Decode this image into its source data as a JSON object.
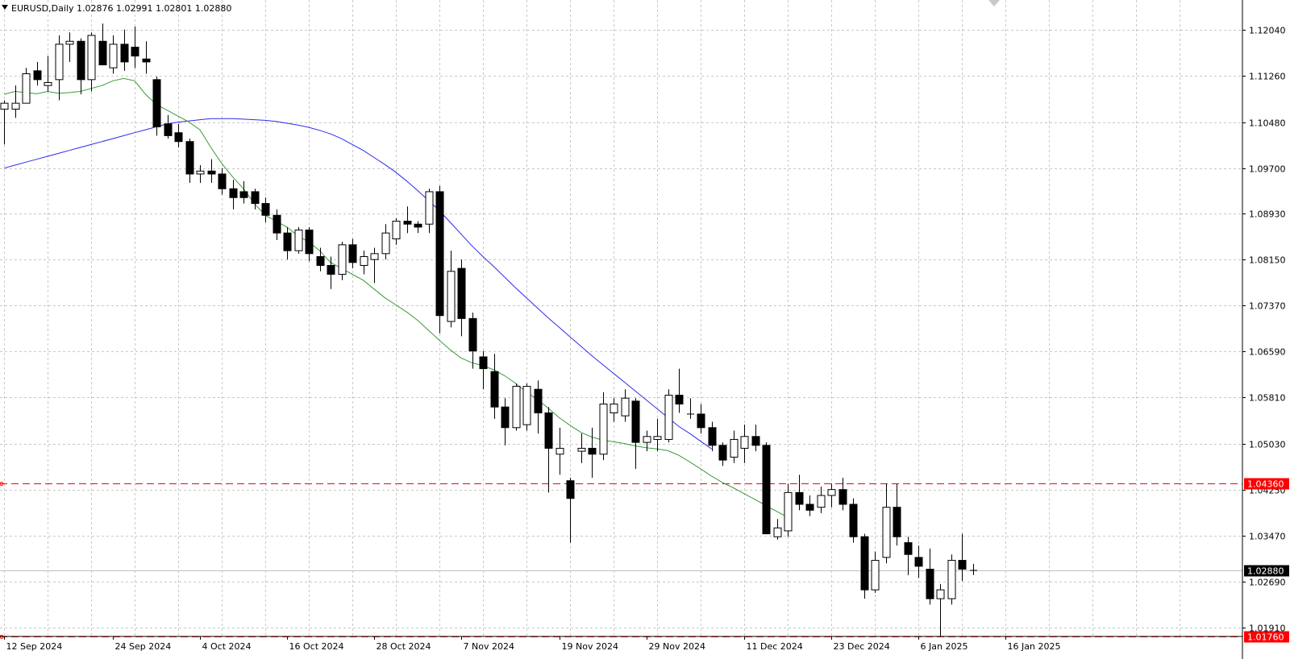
{
  "header": {
    "symbol_line": "EURUSD,Daily 1.02876 1.02991 1.02801 1.02880"
  },
  "colors": {
    "grid": "#c8c8c8",
    "candle_up_fill": "#ffffff",
    "candle_down_fill": "#000000",
    "ma_fast": "#3a9a3a",
    "ma_slow": "#2a2af0",
    "level_line": "#ff0000",
    "bid_line": "#c0c0c0"
  },
  "chart_data": {
    "type": "candlestick",
    "symbol": "EURUSD",
    "timeframe": "Daily",
    "last_ohlc": {
      "open": 1.02876,
      "high": 1.02991,
      "low": 1.02801,
      "close": 1.0288
    },
    "ylim": [
      1.0176,
      1.1255
    ],
    "y_ticks": [
      "1.12040",
      "1.11260",
      "1.10480",
      "1.09700",
      "1.08930",
      "1.08150",
      "1.07370",
      "1.06590",
      "1.05810",
      "1.05030",
      "1.04250",
      "1.03470",
      "1.02690",
      "1.01910"
    ],
    "x_date_labels": [
      {
        "i": 0,
        "label": "12 Sep 2024"
      },
      {
        "i": 10,
        "label": "24 Sep 2024"
      },
      {
        "i": 18,
        "label": "4 Oct 2024"
      },
      {
        "i": 26,
        "label": "16 Oct 2024"
      },
      {
        "i": 34,
        "label": "28 Oct 2024"
      },
      {
        "i": 42,
        "label": "7 Nov 2024"
      },
      {
        "i": 51,
        "label": "19 Nov 2024"
      },
      {
        "i": 59,
        "label": "29 Nov 2024"
      },
      {
        "i": 68,
        "label": "11 Dec 2024"
      },
      {
        "i": 76,
        "label": "23 Dec 2024"
      },
      {
        "i": 84,
        "label": "6 Jan 2025"
      },
      {
        "i": 92,
        "label": "16 Jan 2025"
      }
    ],
    "horizontal_levels": [
      {
        "price": 1.0436,
        "label": "1.04360"
      },
      {
        "price": 1.0176,
        "label": "1.01760"
      }
    ],
    "current_price": {
      "price": 1.0288,
      "label": "1.02880"
    },
    "candles": [
      [
        1.107,
        1.1085,
        1.101,
        1.108
      ],
      [
        1.107,
        1.111,
        1.1055,
        1.108
      ],
      [
        1.108,
        1.114,
        1.108,
        1.113
      ],
      [
        1.1135,
        1.115,
        1.111,
        1.112
      ],
      [
        1.111,
        1.116,
        1.11,
        1.1115
      ],
      [
        1.112,
        1.1195,
        1.1085,
        1.118
      ],
      [
        1.118,
        1.12,
        1.115,
        1.1185
      ],
      [
        1.1185,
        1.119,
        1.1095,
        1.112
      ],
      [
        1.112,
        1.12,
        1.11,
        1.1195
      ],
      [
        1.1185,
        1.1215,
        1.115,
        1.1145
      ],
      [
        1.114,
        1.1195,
        1.113,
        1.118
      ],
      [
        1.118,
        1.1205,
        1.1135,
        1.115
      ],
      [
        1.1175,
        1.121,
        1.114,
        1.116
      ],
      [
        1.1155,
        1.1185,
        1.113,
        1.115
      ],
      [
        1.112,
        1.1125,
        1.1025,
        1.104
      ],
      [
        1.1045,
        1.106,
        1.102,
        1.1025
      ],
      [
        1.103,
        1.1045,
        1.1005,
        1.1015
      ],
      [
        1.1015,
        1.102,
        1.0945,
        1.096
      ],
      [
        1.096,
        1.0975,
        1.0945,
        1.0965
      ],
      [
        1.0965,
        1.0985,
        1.0945,
        1.096
      ],
      [
        1.096,
        1.097,
        1.0925,
        1.0935
      ],
      [
        1.0935,
        1.095,
        1.09,
        1.092
      ],
      [
        1.093,
        1.0948,
        1.091,
        1.092
      ],
      [
        1.093,
        1.0935,
        1.09,
        1.091
      ],
      [
        1.091,
        1.092,
        1.0878,
        1.089
      ],
      [
        1.089,
        1.09,
        1.0848,
        1.086
      ],
      [
        1.086,
        1.087,
        1.0815,
        1.083
      ],
      [
        1.083,
        1.087,
        1.0825,
        1.0865
      ],
      [
        1.0865,
        1.087,
        1.0812,
        1.0825
      ],
      [
        1.082,
        1.0835,
        1.0795,
        1.0805
      ],
      [
        1.0805,
        1.082,
        1.0765,
        1.079
      ],
      [
        1.079,
        1.0845,
        1.078,
        1.084
      ],
      [
        1.084,
        1.085,
        1.08,
        1.081
      ],
      [
        1.0805,
        1.083,
        1.079,
        1.082
      ],
      [
        1.0815,
        1.0835,
        1.0775,
        1.0825
      ],
      [
        1.0825,
        1.0875,
        1.0815,
        1.086
      ],
      [
        1.085,
        1.0885,
        1.084,
        1.088
      ],
      [
        1.088,
        1.0905,
        1.086,
        1.0875
      ],
      [
        1.0875,
        1.088,
        1.086,
        1.087
      ],
      [
        1.0875,
        1.0935,
        1.086,
        1.093
      ],
      [
        1.093,
        1.094,
        1.069,
        1.072
      ],
      [
        1.071,
        1.083,
        1.07,
        1.0795
      ],
      [
        1.08,
        1.0815,
        1.0685,
        1.0715
      ],
      [
        1.0715,
        1.0725,
        1.063,
        1.066
      ],
      [
        1.065,
        1.066,
        1.0595,
        1.063
      ],
      [
        1.0625,
        1.0655,
        1.0545,
        1.0565
      ],
      [
        1.0565,
        1.058,
        1.05,
        1.053
      ],
      [
        1.053,
        1.0605,
        1.0525,
        1.06
      ],
      [
        1.0535,
        1.0605,
        1.0525,
        1.06
      ],
      [
        1.0595,
        1.061,
        1.052,
        1.0555
      ],
      [
        1.0555,
        1.0565,
        1.042,
        1.0495
      ],
      [
        1.0485,
        1.053,
        1.045,
        1.0495
      ],
      [
        1.044,
        1.0445,
        1.0335,
        1.041
      ],
      [
        1.049,
        1.052,
        1.047,
        1.0495
      ],
      [
        1.0495,
        1.053,
        1.0445,
        1.0485
      ],
      [
        1.0485,
        1.059,
        1.0475,
        1.057
      ],
      [
        1.0555,
        1.058,
        1.054,
        1.057
      ],
      [
        1.055,
        1.0595,
        1.054,
        1.058
      ],
      [
        1.0575,
        1.058,
        1.046,
        1.0505
      ],
      [
        1.0505,
        1.0525,
        1.049,
        1.0515
      ],
      [
        1.051,
        1.0545,
        1.049,
        1.0515
      ],
      [
        1.051,
        1.0595,
        1.0505,
        1.0585
      ],
      [
        1.0585,
        1.063,
        1.0555,
        1.057
      ],
      [
        1.0553,
        1.058,
        1.0545,
        1.0553
      ],
      [
        1.0553,
        1.057,
        1.052,
        1.053
      ],
      [
        1.053,
        1.054,
        1.049,
        1.05
      ],
      [
        1.05,
        1.0505,
        1.0465,
        1.0475
      ],
      [
        1.048,
        1.0525,
        1.047,
        1.051
      ],
      [
        1.0495,
        1.0535,
        1.047,
        1.0515
      ],
      [
        1.0515,
        1.0535,
        1.049,
        1.05
      ],
      [
        1.05,
        1.0505,
        1.035,
        1.035
      ],
      [
        1.0345,
        1.0375,
        1.034,
        1.036
      ],
      [
        1.0355,
        1.0435,
        1.0345,
        1.042
      ],
      [
        1.042,
        1.045,
        1.039,
        1.04
      ],
      [
        1.04,
        1.0415,
        1.038,
        1.039
      ],
      [
        1.0395,
        1.043,
        1.0385,
        1.0415
      ],
      [
        1.0415,
        1.0435,
        1.0395,
        1.0425
      ],
      [
        1.0425,
        1.0445,
        1.039,
        1.04
      ],
      [
        1.04,
        1.041,
        1.0335,
        1.0345
      ],
      [
        1.0345,
        1.035,
        1.024,
        1.0255
      ],
      [
        1.0255,
        1.032,
        1.025,
        1.0305
      ],
      [
        1.031,
        1.0435,
        1.03,
        1.0395
      ],
      [
        1.0395,
        1.0435,
        1.033,
        1.0345
      ],
      [
        1.0335,
        1.0345,
        1.028,
        1.0315
      ],
      [
        1.031,
        1.033,
        1.0275,
        1.0295
      ],
      [
        1.029,
        1.0325,
        1.023,
        1.024
      ],
      [
        1.024,
        1.0265,
        1.0176,
        1.0255
      ],
      [
        1.024,
        1.0315,
        1.023,
        1.0305
      ],
      [
        1.0305,
        1.035,
        1.027,
        1.029
      ],
      [
        1.02876,
        1.02991,
        1.02801,
        1.0288
      ]
    ],
    "ma_fast": [
      1.1095,
      1.11,
      1.1098,
      1.1096,
      1.11,
      1.1097,
      1.1098,
      1.11,
      1.1105,
      1.111,
      1.1118,
      1.1122,
      1.1118,
      1.1095,
      1.1078,
      1.1068,
      1.1058,
      1.1048,
      1.1035,
      1.1005,
      1.0978,
      1.0955,
      1.0935,
      1.091,
      1.089,
      1.088,
      1.087,
      1.0855,
      1.0845,
      1.083,
      1.081,
      1.08,
      1.079,
      1.078,
      1.0765,
      1.075,
      1.0738,
      1.0726,
      1.0712,
      1.0695,
      1.0678,
      1.0662,
      1.0648,
      1.064,
      1.0635,
      1.0628,
      1.0618,
      1.0605,
      1.059,
      1.0578,
      1.0563,
      1.0547,
      1.0534,
      1.0522,
      1.0514,
      1.0509,
      1.0506,
      1.0503,
      1.0499,
      1.0496,
      1.0494,
      1.0491,
      1.0483,
      1.0472,
      1.046,
      1.0448,
      1.0437,
      1.0428,
      1.0418,
      1.0408,
      1.0398,
      1.0388,
      1.0378
    ],
    "ma_fast_start_index": 0,
    "ma_slow": [
      1.097,
      1.0975,
      1.098,
      1.0985,
      1.099,
      1.0995,
      1.1,
      1.1005,
      1.101,
      1.1015,
      1.102,
      1.1025,
      1.103,
      1.1035,
      1.104,
      1.1045,
      1.1048,
      1.105,
      1.1052,
      1.1054,
      1.1054,
      1.1054,
      1.1053,
      1.1052,
      1.1051,
      1.1049,
      1.1046,
      1.1043,
      1.1039,
      1.1034,
      1.1028,
      1.102,
      1.101,
      1.1,
      1.0988,
      1.0976,
      1.0963,
      1.0948,
      1.0932,
      1.0915,
      1.0898,
      1.0878,
      1.0858,
      1.0838,
      1.082,
      1.0803,
      1.0785,
      1.0767,
      1.075,
      1.0733,
      1.0716,
      1.07,
      1.0684,
      1.0668,
      1.0652,
      1.0637,
      1.0622,
      1.0607,
      1.0592,
      1.0577,
      1.0562,
      1.0547,
      1.0532,
      1.052,
      1.0507,
      1.0494
    ],
    "ma_slow_start_index": 0
  }
}
